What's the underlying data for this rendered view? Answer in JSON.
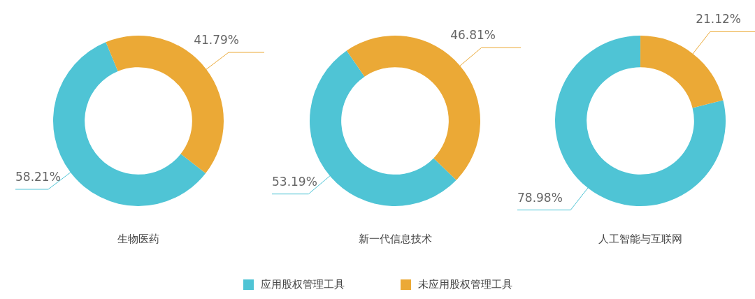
{
  "chart_data": [
    {
      "type": "donut",
      "title": "生物医药",
      "categories": [
        "应用股权管理工具",
        "未应用股权管理工具"
      ],
      "values": [
        58.21,
        41.79
      ],
      "colors": [
        "#4fc4d5",
        "#eba936"
      ],
      "value_labels": [
        "58.21%",
        "41.79%"
      ],
      "legend": "bottom"
    },
    {
      "type": "donut",
      "title": "新一代信息技术",
      "categories": [
        null,
        null
      ],
      "values": [
        53.19,
        46.81
      ],
      "colors": [
        "#4fc4d5",
        "#eba936"
      ],
      "value_labels": [
        "53.19%",
        "46.81%"
      ]
    },
    {
      "type": "donut",
      "title": "人工智能与互联网",
      "categories": [
        null,
        null
      ],
      "values": [
        78.98,
        21.12
      ],
      "colors": [
        "#4fc4d5",
        "#eba936"
      ],
      "value_labels": [
        "78.98%",
        "21.12%"
      ]
    }
  ]
}
